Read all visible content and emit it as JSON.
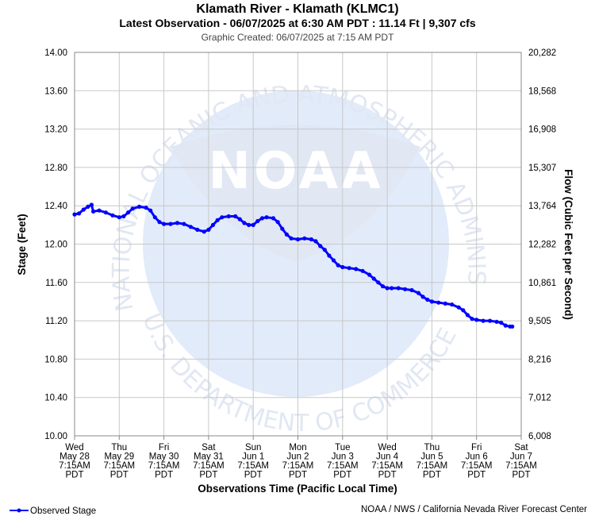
{
  "chart_data": {
    "type": "line",
    "title": "Klamath River - Klamath (KLMC1)",
    "subtitle": "Latest Observation - 06/07/2025 at 6:30 AM PDT : 11.14 Ft | 9,307 cfs",
    "created": "Graphic Created: 06/07/2025 at 7:15 AM PDT",
    "xlabel": "Observations Time (Pacific Local Time)",
    "ylabel": "Stage (Feet)",
    "y2label": "Flow (Cubic Feet per Second)",
    "ylim": [
      10.0,
      14.0
    ],
    "xlim": [
      0,
      10
    ],
    "y_ticks": [
      "10.00",
      "10.40",
      "10.80",
      "11.20",
      "11.60",
      "12.00",
      "12.40",
      "12.80",
      "13.20",
      "13.60",
      "14.00"
    ],
    "y2_ticks": [
      "6,008",
      "7,012",
      "8,216",
      "9,505",
      "10,861",
      "12,282",
      "13,764",
      "15,307",
      "16,908",
      "18,568",
      "20,282"
    ],
    "x_ticks": [
      {
        "day": "Wed",
        "date": "May 28",
        "time": "7:15AM",
        "tz": "PDT"
      },
      {
        "day": "Thu",
        "date": "May 29",
        "time": "7:15AM",
        "tz": "PDT"
      },
      {
        "day": "Fri",
        "date": "May 30",
        "time": "7:15AM",
        "tz": "PDT"
      },
      {
        "day": "Sat",
        "date": "May 31",
        "time": "7:15AM",
        "tz": "PDT"
      },
      {
        "day": "Sun",
        "date": "Jun 1",
        "time": "7:15AM",
        "tz": "PDT"
      },
      {
        "day": "Mon",
        "date": "Jun 2",
        "time": "7:15AM",
        "tz": "PDT"
      },
      {
        "day": "Tue",
        "date": "Jun 3",
        "time": "7:15AM",
        "tz": "PDT"
      },
      {
        "day": "Wed",
        "date": "Jun 4",
        "time": "7:15AM",
        "tz": "PDT"
      },
      {
        "day": "Thu",
        "date": "Jun 5",
        "time": "7:15AM",
        "tz": "PDT"
      },
      {
        "day": "Fri",
        "date": "Jun 6",
        "time": "7:15AM",
        "tz": "PDT"
      },
      {
        "day": "Sat",
        "date": "Jun 7",
        "time": "7:15AM",
        "tz": "PDT"
      }
    ],
    "series": [
      {
        "name": "Observed Stage",
        "color": "#0000ff",
        "points": [
          [
            0.0,
            12.31
          ],
          [
            0.1,
            12.32
          ],
          [
            0.2,
            12.36
          ],
          [
            0.3,
            12.39
          ],
          [
            0.38,
            12.41
          ],
          [
            0.42,
            12.34
          ],
          [
            0.55,
            12.35
          ],
          [
            0.7,
            12.33
          ],
          [
            0.85,
            12.3
          ],
          [
            1.0,
            12.28
          ],
          [
            1.1,
            12.29
          ],
          [
            1.2,
            12.33
          ],
          [
            1.3,
            12.37
          ],
          [
            1.45,
            12.39
          ],
          [
            1.6,
            12.38
          ],
          [
            1.7,
            12.35
          ],
          [
            1.8,
            12.28
          ],
          [
            1.9,
            12.23
          ],
          [
            2.0,
            12.21
          ],
          [
            2.15,
            12.21
          ],
          [
            2.3,
            12.22
          ],
          [
            2.45,
            12.21
          ],
          [
            2.6,
            12.18
          ],
          [
            2.75,
            12.15
          ],
          [
            2.9,
            12.13
          ],
          [
            3.0,
            12.15
          ],
          [
            3.1,
            12.2
          ],
          [
            3.2,
            12.25
          ],
          [
            3.3,
            12.28
          ],
          [
            3.45,
            12.29
          ],
          [
            3.6,
            12.29
          ],
          [
            3.7,
            12.26
          ],
          [
            3.8,
            12.22
          ],
          [
            3.9,
            12.2
          ],
          [
            4.0,
            12.2
          ],
          [
            4.1,
            12.24
          ],
          [
            4.2,
            12.27
          ],
          [
            4.3,
            12.28
          ],
          [
            4.45,
            12.27
          ],
          [
            4.55,
            12.23
          ],
          [
            4.65,
            12.16
          ],
          [
            4.75,
            12.1
          ],
          [
            4.85,
            12.06
          ],
          [
            5.0,
            12.05
          ],
          [
            5.15,
            12.06
          ],
          [
            5.3,
            12.05
          ],
          [
            5.4,
            12.03
          ],
          [
            5.5,
            11.98
          ],
          [
            5.6,
            11.94
          ],
          [
            5.7,
            11.88
          ],
          [
            5.8,
            11.83
          ],
          [
            5.9,
            11.78
          ],
          [
            6.0,
            11.76
          ],
          [
            6.15,
            11.75
          ],
          [
            6.3,
            11.74
          ],
          [
            6.45,
            11.72
          ],
          [
            6.6,
            11.68
          ],
          [
            6.7,
            11.64
          ],
          [
            6.8,
            11.6
          ],
          [
            6.9,
            11.56
          ],
          [
            7.0,
            11.54
          ],
          [
            7.1,
            11.54
          ],
          [
            7.25,
            11.54
          ],
          [
            7.4,
            11.53
          ],
          [
            7.55,
            11.52
          ],
          [
            7.7,
            11.49
          ],
          [
            7.8,
            11.45
          ],
          [
            7.9,
            11.42
          ],
          [
            8.0,
            11.4
          ],
          [
            8.15,
            11.39
          ],
          [
            8.3,
            11.38
          ],
          [
            8.45,
            11.37
          ],
          [
            8.6,
            11.34
          ],
          [
            8.7,
            11.31
          ],
          [
            8.8,
            11.26
          ],
          [
            8.9,
            11.22
          ],
          [
            9.0,
            11.21
          ],
          [
            9.15,
            11.2
          ],
          [
            9.3,
            11.2
          ],
          [
            9.45,
            11.19
          ],
          [
            9.55,
            11.18
          ],
          [
            9.65,
            11.15
          ],
          [
            9.75,
            11.14
          ],
          [
            9.8,
            11.14
          ]
        ]
      }
    ],
    "grid": true,
    "legend": "bottom-left",
    "credit": "NOAA / NWS / California Nevada River Forecast Center",
    "watermark": {
      "logo_text": "NOAA",
      "ring_text": "NATIONAL OCEANIC AND ATMOSPHERIC ADMINISTRATION",
      "bottom_text": "U.S. DEPARTMENT OF COMMERCE"
    }
  }
}
